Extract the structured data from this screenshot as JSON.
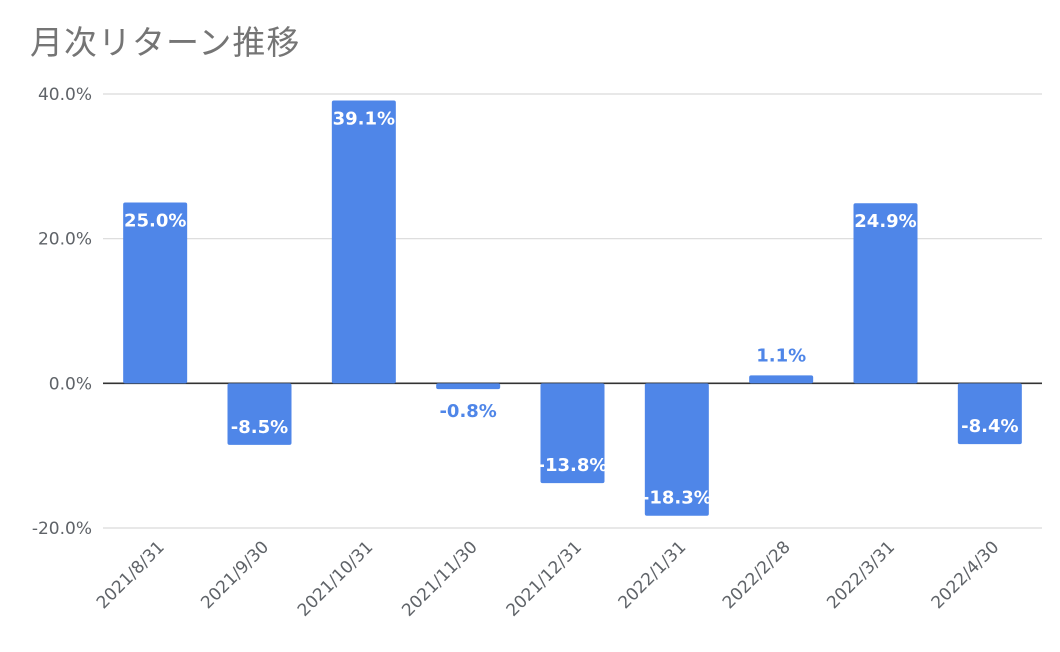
{
  "chart_data": {
    "type": "bar",
    "title": "月次リターン推移",
    "xlabel": "",
    "ylabel": "",
    "categories": [
      "2021/8/31",
      "2021/9/30",
      "2021/10/31",
      "2021/11/30",
      "2021/12/31",
      "2022/1/31",
      "2022/2/28",
      "2022/3/31",
      "2022/4/30"
    ],
    "values": [
      25.0,
      -8.5,
      39.1,
      -0.8,
      -13.8,
      -18.3,
      1.1,
      24.9,
      -8.4
    ],
    "value_labels": [
      "25.0%",
      "-8.5%",
      "39.1%",
      "-0.8%",
      "-13.8%",
      "-18.3%",
      "1.1%",
      "24.9%",
      "-8.4%"
    ],
    "ylim": [
      -20,
      40
    ],
    "yticks": [
      -20,
      0,
      20,
      40
    ],
    "ytick_labels": [
      "-20.0%",
      "0.0%",
      "20.0%",
      "40.0%"
    ],
    "grid": true,
    "legend": "none",
    "bar_color": "#4f86e8",
    "inside_label_color": "#ffffff",
    "outside_label_color": "#4f86e8"
  }
}
